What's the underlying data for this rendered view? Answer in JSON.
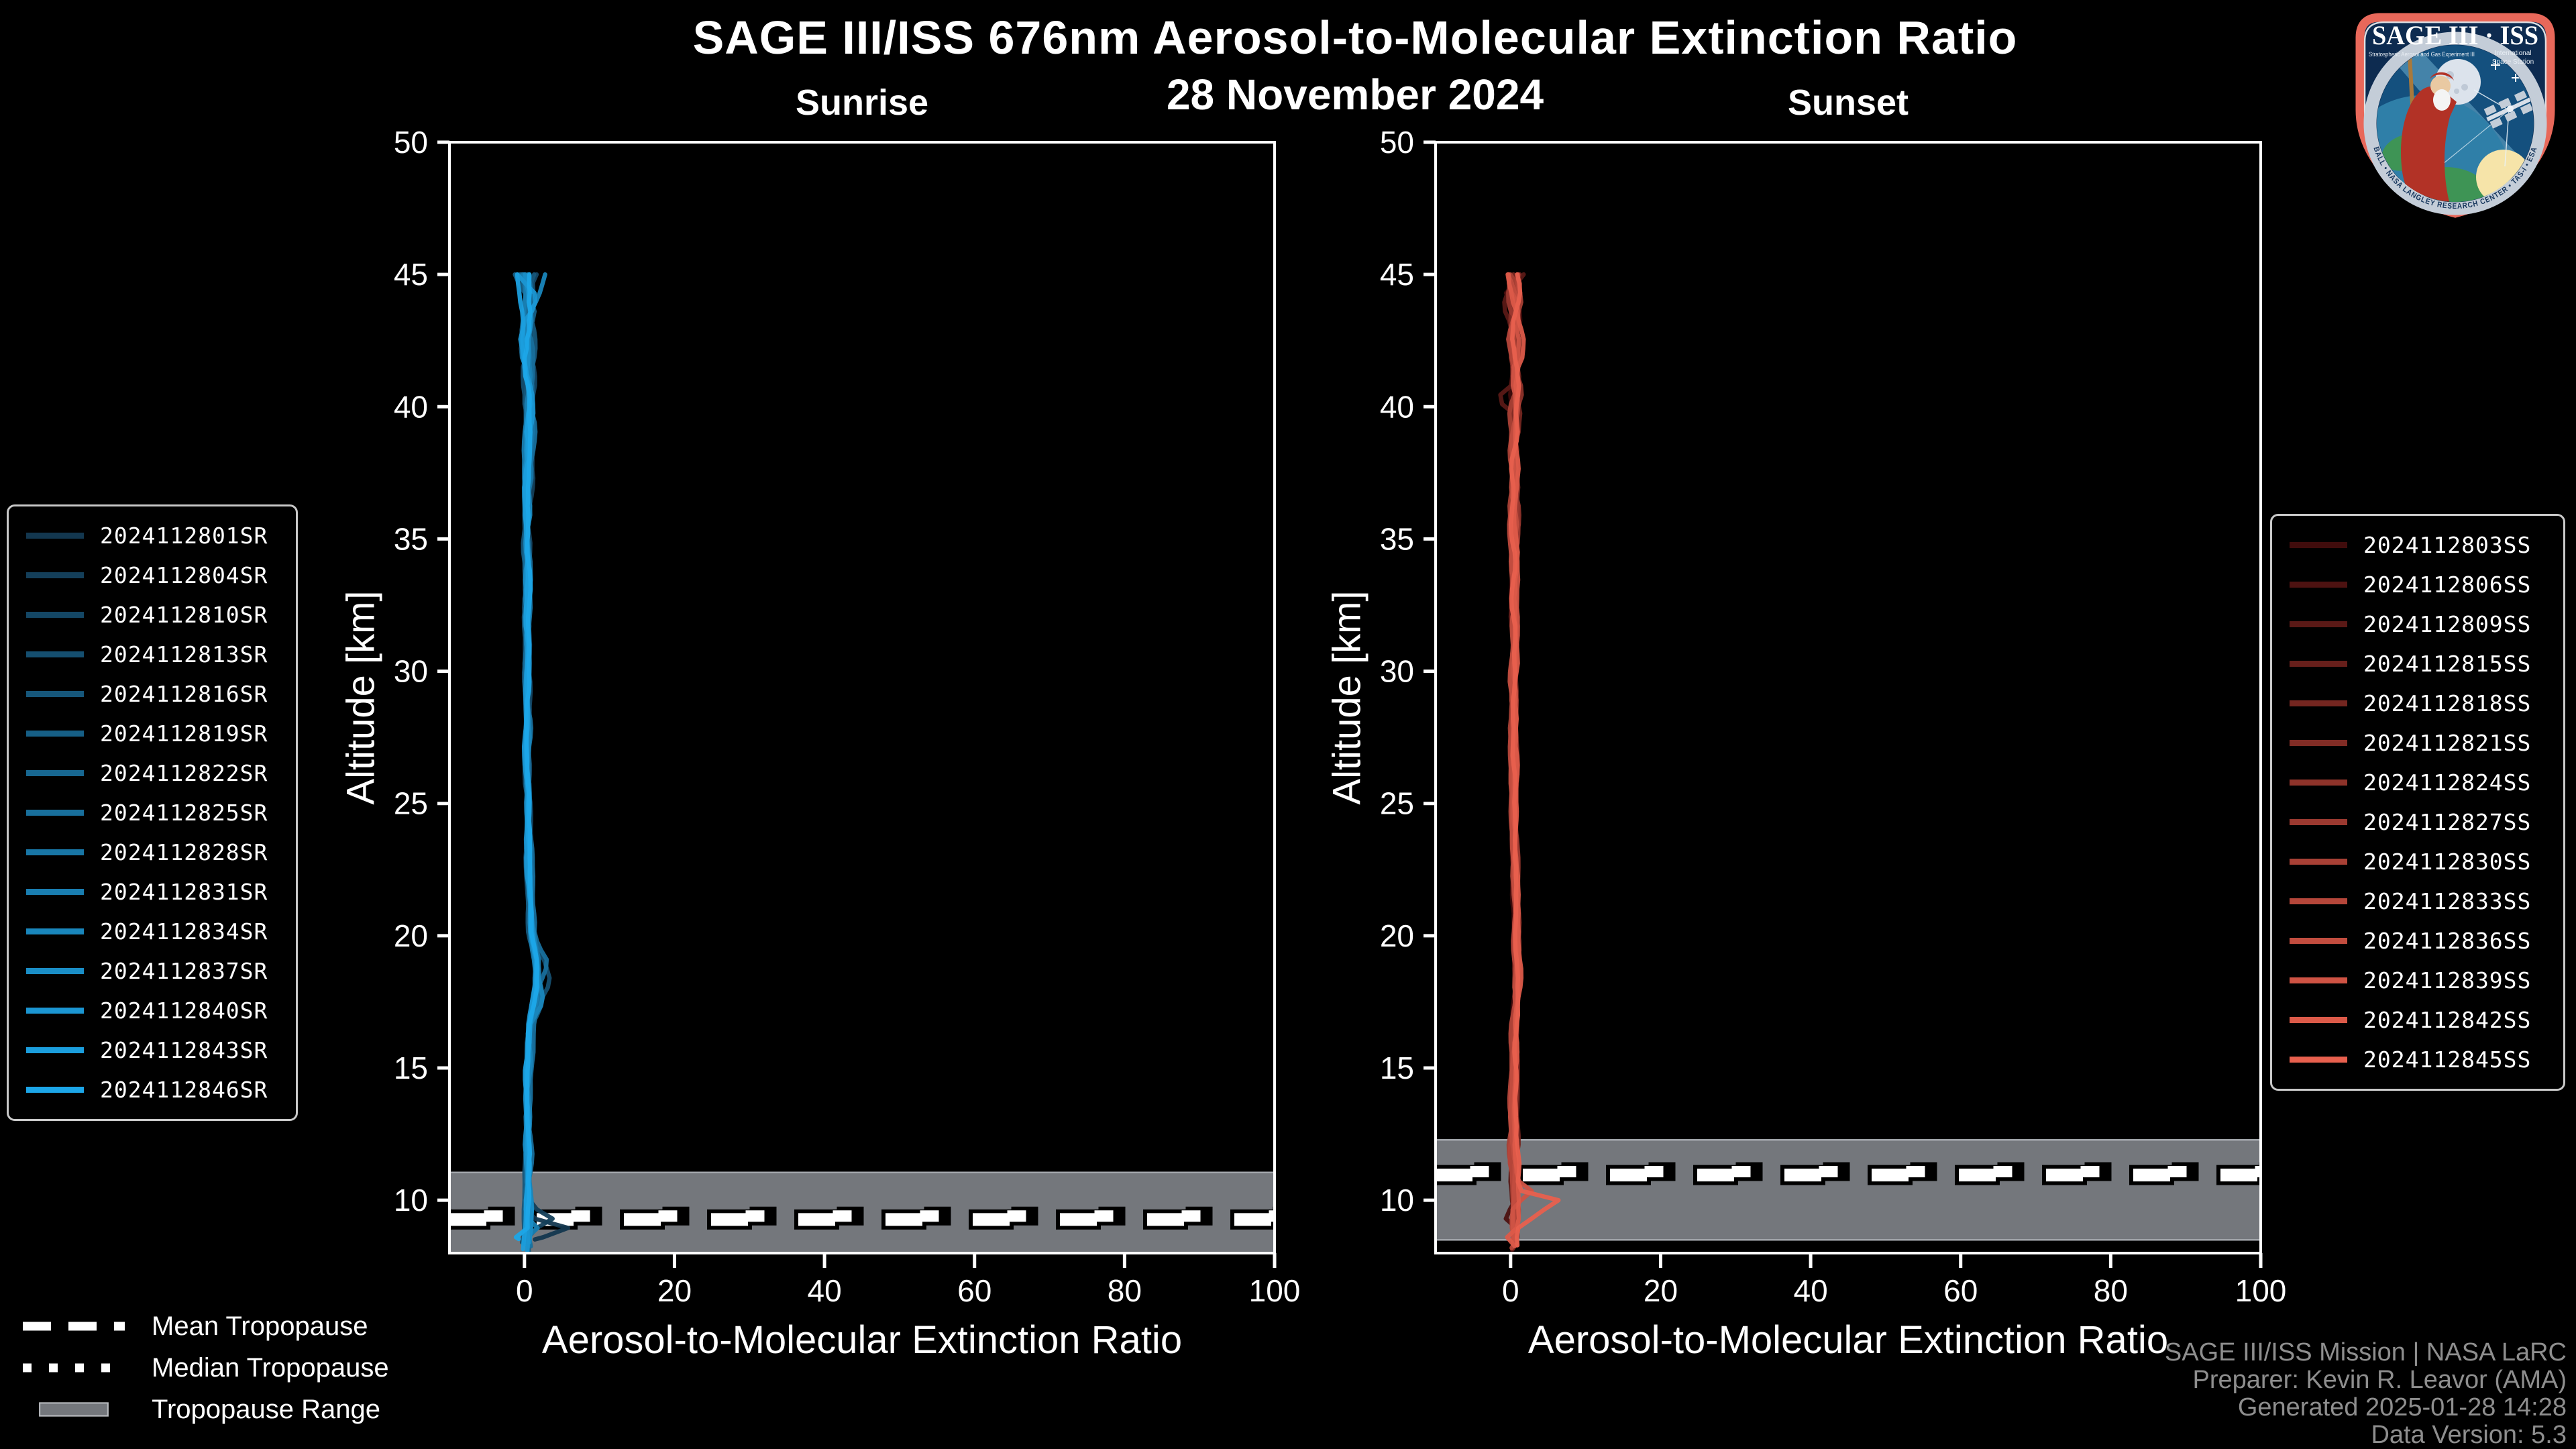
{
  "page": {
    "title": "SAGE III/ISS 676nm Aerosol-to-Molecular Extinction Ratio",
    "date": "28 November 2024"
  },
  "attribution": {
    "lines": [
      "SAGE III/ISS Mission | NASA LaRC",
      "Preparer: Kevin R. Leavor (AMA)",
      "Generated 2025-01-28 14:28",
      "Data Version: 5.3"
    ]
  },
  "tropopause_legend": {
    "mean": "Mean Tropopause",
    "median": "Median Tropopause",
    "range": "Tropopause Range"
  },
  "logo": {
    "title": "SAGE III · ISS",
    "sub_left": "Stratospheric Aerosol and Gas Experiment III",
    "sub_right_1": "International",
    "sub_right_2": "Space Station",
    "rim_text": "BALL • NASA LANGLEY RESEARCH CENTER • TAS-I • ESA",
    "border_color": "#E8685A",
    "bg_color": "#0D2B50"
  },
  "colors": {
    "background": "#000000",
    "text": "#FFFFFF",
    "muted_text": "#8E8E8E",
    "band": "#74777C",
    "band_edge": "#A2A6AB",
    "spine": "#FFFFFF",
    "legend_border": "#C9C9C9"
  },
  "chart_data": {
    "type": "line",
    "title": "SAGE III/ISS 676nm Aerosol-to-Molecular Extinction Ratio",
    "subtitle": "28 November 2024",
    "xlabel": "Aerosol-to-Molecular Extinction Ratio",
    "ylabel": "Altitude [km]",
    "xlim": [
      -10,
      100
    ],
    "ylim": [
      8,
      50
    ],
    "x_ticks": [
      0,
      20,
      40,
      60,
      80,
      100
    ],
    "y_ticks": [
      10,
      15,
      20,
      25,
      30,
      35,
      40,
      45,
      50
    ],
    "grid": false,
    "legend_position": "outside",
    "panels": [
      {
        "id": "sunrise",
        "title": "Sunrise",
        "seed": 5,
        "tropopause": {
          "mean": 9.27,
          "median": 9.4,
          "range": [
            8.0,
            11.05
          ]
        },
        "base_profile": [
          [
            8,
            0.4
          ],
          [
            9,
            0.5
          ],
          [
            10,
            0.45
          ],
          [
            12,
            0.4
          ],
          [
            15,
            0.5
          ],
          [
            16.5,
            0.8
          ],
          [
            18,
            1.6
          ],
          [
            19,
            1.7
          ],
          [
            20,
            1.05
          ],
          [
            21,
            0.8
          ],
          [
            23,
            0.6
          ],
          [
            26,
            0.45
          ],
          [
            30,
            0.4
          ],
          [
            36,
            0.45
          ],
          [
            42,
            0.5
          ],
          [
            45,
            0.5
          ]
        ],
        "noise_amplitude": [
          [
            8,
            0.5
          ],
          [
            10,
            0.4
          ],
          [
            15,
            0.35
          ],
          [
            25,
            0.3
          ],
          [
            36,
            0.4
          ],
          [
            41,
            0.7
          ],
          [
            43.5,
            1.1
          ],
          [
            45,
            1.5
          ]
        ],
        "events": [
          {
            "label": "2024112801SR",
            "color": "#13374F",
            "spikes": [
              [
                8.9,
                6.3,
                0.5
              ]
            ]
          },
          {
            "label": "2024112804SR",
            "color": "#143F5A",
            "spikes": [
              [
                9.3,
                3.0,
                0.5
              ]
            ]
          },
          {
            "label": "2024112810SR",
            "color": "#144765",
            "spikes": []
          },
          {
            "label": "2024112813SR",
            "color": "#154F70",
            "spikes": [
              [
                18.3,
                2.0,
                1.4
              ]
            ]
          },
          {
            "label": "2024112816SR",
            "color": "#16577B",
            "spikes": []
          },
          {
            "label": "2024112819SR",
            "color": "#165F86",
            "spikes": [
              [
                17.6,
                1.2,
                1.0
              ]
            ]
          },
          {
            "label": "2024112822SR",
            "color": "#176791",
            "spikes": []
          },
          {
            "label": "2024112825SR",
            "color": "#186F9C",
            "spikes": [
              [
                19.0,
                1.3,
                1.1
              ]
            ]
          },
          {
            "label": "2024112828SR",
            "color": "#1876A6",
            "spikes": []
          },
          {
            "label": "2024112831SR",
            "color": "#197EB1",
            "spikes": [
              [
                9.0,
                1.5,
                0.4
              ]
            ]
          },
          {
            "label": "2024112834SR",
            "color": "#1986BC",
            "spikes": [
              [
                17.5,
                1.0,
                0.8
              ]
            ]
          },
          {
            "label": "2024112837SR",
            "color": "#1A8EC7",
            "spikes": []
          },
          {
            "label": "2024112840SR",
            "color": "#1B96D2",
            "spikes": []
          },
          {
            "label": "2024112843SR",
            "color": "#1B9EDD",
            "spikes": []
          },
          {
            "label": "2024112846SR",
            "color": "#1CA6E8",
            "spikes": [
              [
                8.6,
                -1.7,
                0.35
              ]
            ]
          }
        ]
      },
      {
        "id": "sunset",
        "title": "Sunset",
        "seed": 9,
        "tropopause": {
          "mean": 10.95,
          "median": 11.08,
          "range": [
            8.5,
            12.28
          ]
        },
        "base_profile": [
          [
            8,
            0.5
          ],
          [
            9,
            0.6
          ],
          [
            9.8,
            0.7
          ],
          [
            10.5,
            0.6
          ],
          [
            12,
            0.45
          ],
          [
            15,
            0.5
          ],
          [
            17,
            0.7
          ],
          [
            18.5,
            0.85
          ],
          [
            20,
            0.7
          ],
          [
            23,
            0.55
          ],
          [
            27,
            0.45
          ],
          [
            33,
            0.45
          ],
          [
            40,
            0.55
          ],
          [
            45,
            0.6
          ]
        ],
        "noise_amplitude": [
          [
            8,
            0.5
          ],
          [
            10,
            0.45
          ],
          [
            15,
            0.35
          ],
          [
            25,
            0.3
          ],
          [
            36,
            0.45
          ],
          [
            41,
            0.75
          ],
          [
            43.5,
            1.1
          ],
          [
            45,
            1.4
          ]
        ],
        "events": [
          {
            "label": "2024112803SS",
            "color": "#400C0C",
            "spikes": [
              [
                44.2,
                -1.6,
                0.5
              ]
            ]
          },
          {
            "label": "2024112806SS",
            "color": "#4D1211",
            "spikes": [
              [
                9.4,
                -1.8,
                0.4
              ]
            ]
          },
          {
            "label": "2024112809SS",
            "color": "#5A1916",
            "spikes": [
              [
                40.3,
                -2.3,
                0.5
              ]
            ]
          },
          {
            "label": "2024112815SS",
            "color": "#671F1B",
            "spikes": []
          },
          {
            "label": "2024112818SS",
            "color": "#742620",
            "spikes": []
          },
          {
            "label": "2024112821SS",
            "color": "#812C25",
            "spikes": []
          },
          {
            "label": "2024112824SS",
            "color": "#8E332A",
            "spikes": []
          },
          {
            "label": "2024112827SS",
            "color": "#9B3930",
            "spikes": []
          },
          {
            "label": "2024112830SS",
            "color": "#A84035",
            "spikes": []
          },
          {
            "label": "2024112833SS",
            "color": "#B5463A",
            "spikes": []
          },
          {
            "label": "2024112836SS",
            "color": "#C24D3F",
            "spikes": []
          },
          {
            "label": "2024112839SS",
            "color": "#CF5344",
            "spikes": [
              [
                10.3,
                2.6,
                0.5
              ]
            ]
          },
          {
            "label": "2024112842SS",
            "color": "#DC5A49",
            "spikes": [
              [
                8.6,
                -1.4,
                0.4
              ]
            ]
          },
          {
            "label": "2024112845SS",
            "color": "#E8604E",
            "spikes": [
              [
                9.9,
                7.0,
                0.5
              ],
              [
                9.3,
                2.0,
                0.4
              ]
            ]
          }
        ]
      }
    ]
  }
}
